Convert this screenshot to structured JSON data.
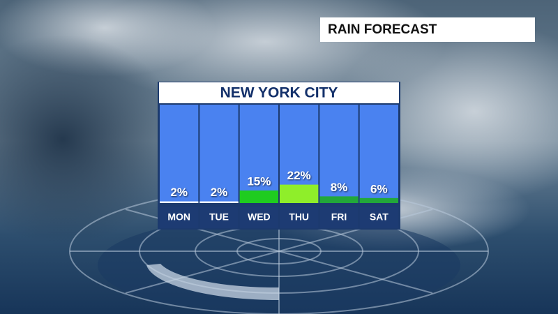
{
  "chart_data": {
    "type": "bar",
    "title": "RAIN FORECAST",
    "subtitle": "NEW YORK CITY",
    "categories": [
      "MON",
      "TUE",
      "WED",
      "THU",
      "FRI",
      "SAT"
    ],
    "values": [
      2,
      2,
      15,
      22,
      8,
      6
    ],
    "value_labels": [
      "2%",
      "2%",
      "15%",
      "22%",
      "8%",
      "6%"
    ],
    "colors": [
      "#ffffff",
      "#ffffff",
      "#1fcc1f",
      "#8fee2a",
      "#22a83a",
      "#22a83a"
    ]
  }
}
